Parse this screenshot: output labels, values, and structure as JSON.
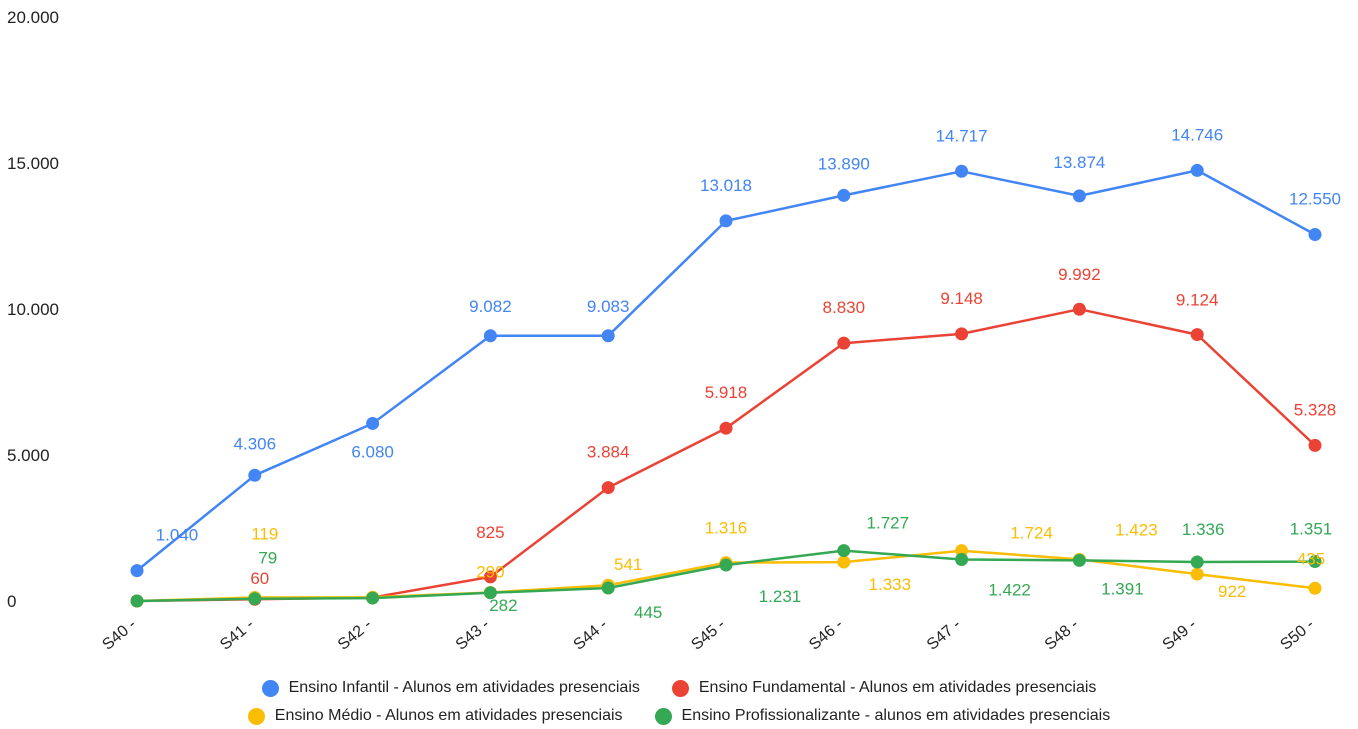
{
  "chart_data": {
    "type": "line",
    "title": "",
    "xlabel": "",
    "ylabel": "",
    "categories": [
      "S40 -",
      "S41 -",
      "S42 -",
      "S43 -",
      "S44 -",
      "S45 -",
      "S46 -",
      "S47 -",
      "S48 -",
      "S49 -",
      "S50 -"
    ],
    "ylim": [
      0,
      20000
    ],
    "yticks": [
      "0",
      "5.000",
      "10.000",
      "15.000",
      "20.000"
    ],
    "grid": false,
    "legend_position": "bottom",
    "series": [
      {
        "name": "Ensino Infantil - Alunos em atividades presenciais",
        "color": "#4285F4",
        "values": [
          1040,
          4306,
          6080,
          9082,
          9083,
          13018,
          13890,
          14717,
          13874,
          14746,
          12550
        ],
        "labels": [
          "1.040",
          "4.306",
          "6.080",
          "9.082",
          "9.083",
          "13.018",
          "13.890",
          "14.717",
          "13.874",
          "14.746",
          "12.550"
        ]
      },
      {
        "name": "Ensino Fundamental - Alunos em atividades presenciais",
        "color": "#EA4335",
        "values": [
          0,
          60,
          120,
          825,
          3884,
          5918,
          8830,
          9148,
          9992,
          9124,
          5328
        ],
        "labels": [
          "",
          "60",
          "",
          "825",
          "3.884",
          "5.918",
          "8.830",
          "9.148",
          "9.992",
          "9.124",
          "5.328"
        ]
      },
      {
        "name": "Ensino Médio - Alunos em atividades presenciais",
        "color": "#FBBC04",
        "values": [
          0,
          119,
          130,
          290,
          541,
          1316,
          1333,
          1724,
          1423,
          922,
          435
        ],
        "labels": [
          "",
          "119",
          "",
          "290",
          "541",
          "1.316",
          "1.333",
          "1.724",
          "1.423",
          "922",
          "435"
        ]
      },
      {
        "name": "Ensino Profissionalizante - alunos em atividades presenciais",
        "color": "#34A853",
        "values": [
          0,
          79,
          100,
          282,
          445,
          1231,
          1727,
          1422,
          1391,
          1336,
          1351
        ],
        "labels": [
          "",
          "79",
          "",
          "282",
          "445",
          "1.231",
          "1.727",
          "1.422",
          "1.391",
          "1.336",
          "1.351"
        ]
      }
    ]
  }
}
